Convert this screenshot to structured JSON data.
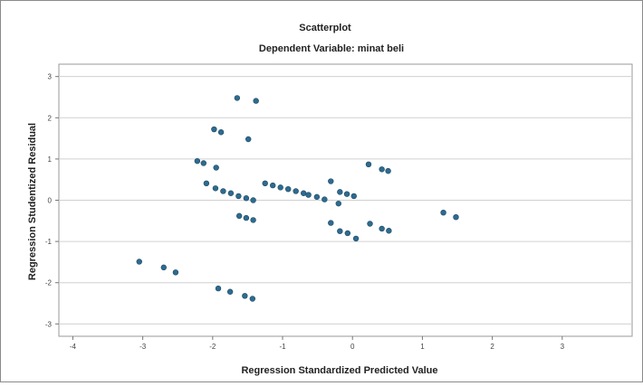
{
  "chart_data": {
    "type": "scatter",
    "title": "Scatterplot",
    "subtitle": "Dependent Variable: minat beli",
    "xlabel": "Regression Standardized Predicted Value",
    "ylabel": "Regression Studentized Residual",
    "xlim": [
      -4.2,
      4.0
    ],
    "ylim": [
      -3.3,
      3.3
    ],
    "x_ticks": [
      -4,
      -3,
      -2,
      -1,
      0,
      1,
      2,
      3
    ],
    "y_ticks": [
      3,
      2,
      1,
      0,
      -1,
      -2,
      -3
    ],
    "x_tick_labels": [
      "-4",
      "-3",
      "-2",
      "-1",
      "0",
      "1",
      "2",
      "3"
    ],
    "y_tick_labels": [
      "3",
      "2",
      "1",
      "0",
      "-1",
      "-2",
      "-3"
    ],
    "grid": "horizontal",
    "marker_color": "#2e6b8f",
    "points": [
      {
        "x": -1.65,
        "y": 2.48
      },
      {
        "x": -1.38,
        "y": 2.41
      },
      {
        "x": -1.98,
        "y": 1.72
      },
      {
        "x": -1.88,
        "y": 1.65
      },
      {
        "x": -1.49,
        "y": 1.48
      },
      {
        "x": -2.22,
        "y": 0.95
      },
      {
        "x": -2.13,
        "y": 0.9
      },
      {
        "x": -1.95,
        "y": 0.79
      },
      {
        "x": -2.09,
        "y": 0.41
      },
      {
        "x": -1.96,
        "y": 0.29
      },
      {
        "x": -1.85,
        "y": 0.22
      },
      {
        "x": -1.74,
        "y": 0.17
      },
      {
        "x": -1.63,
        "y": 0.1
      },
      {
        "x": -1.52,
        "y": 0.05
      },
      {
        "x": -1.42,
        "y": 0.0
      },
      {
        "x": -1.25,
        "y": 0.41
      },
      {
        "x": -1.14,
        "y": 0.36
      },
      {
        "x": -1.03,
        "y": 0.31
      },
      {
        "x": -0.92,
        "y": 0.27
      },
      {
        "x": -0.81,
        "y": 0.22
      },
      {
        "x": -0.7,
        "y": 0.17
      },
      {
        "x": -0.63,
        "y": 0.13
      },
      {
        "x": -0.51,
        "y": 0.08
      },
      {
        "x": -0.4,
        "y": 0.02
      },
      {
        "x": -0.31,
        "y": 0.46
      },
      {
        "x": -0.2,
        "y": -0.08
      },
      {
        "x": -1.62,
        "y": -0.38
      },
      {
        "x": -1.52,
        "y": -0.43
      },
      {
        "x": -1.42,
        "y": -0.48
      },
      {
        "x": -0.31,
        "y": -0.55
      },
      {
        "x": -0.18,
        "y": 0.2
      },
      {
        "x": -0.08,
        "y": 0.15
      },
      {
        "x": 0.02,
        "y": 0.1
      },
      {
        "x": 0.23,
        "y": 0.87
      },
      {
        "x": 0.42,
        "y": 0.75
      },
      {
        "x": 0.51,
        "y": 0.71
      },
      {
        "x": -0.18,
        "y": -0.75
      },
      {
        "x": -0.07,
        "y": -0.8
      },
      {
        "x": 0.05,
        "y": -0.93
      },
      {
        "x": 0.25,
        "y": -0.57
      },
      {
        "x": 0.42,
        "y": -0.69
      },
      {
        "x": 0.52,
        "y": -0.74
      },
      {
        "x": 1.3,
        "y": -0.3
      },
      {
        "x": 1.48,
        "y": -0.41
      },
      {
        "x": -3.05,
        "y": -1.49
      },
      {
        "x": -2.7,
        "y": -1.63
      },
      {
        "x": -2.53,
        "y": -1.75
      },
      {
        "x": -1.92,
        "y": -2.14
      },
      {
        "x": -1.75,
        "y": -2.22
      },
      {
        "x": -1.54,
        "y": -2.32
      },
      {
        "x": -1.43,
        "y": -2.39
      }
    ]
  }
}
